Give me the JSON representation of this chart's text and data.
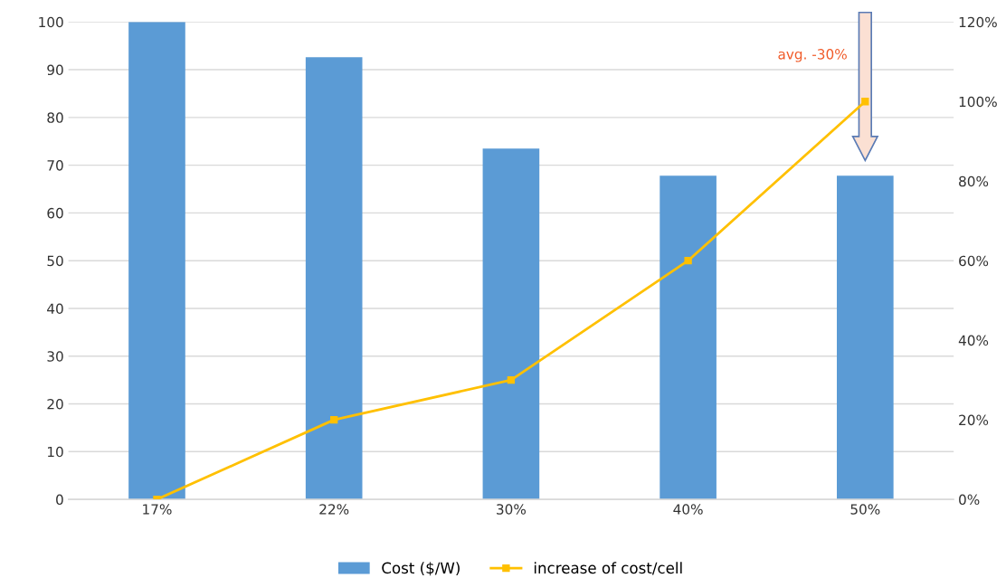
{
  "chart_data": {
    "type": "bar",
    "categories": [
      "17%",
      "22%",
      "30%",
      "40%",
      "50%"
    ],
    "series": [
      {
        "name": "Cost ($/W)",
        "color": "#5b9bd5",
        "values": [
          100,
          92.6,
          73.5,
          67.8,
          67.8
        ]
      },
      {
        "name": "increase of cost/cell",
        "type": "line",
        "axis": "y2",
        "color": "#ffc000",
        "marker": "square",
        "values": [
          0,
          20,
          30,
          60,
          100
        ]
      }
    ],
    "ylim": [
      0,
      100
    ],
    "yticks": [
      0,
      10,
      20,
      30,
      40,
      50,
      60,
      70,
      80,
      90,
      100
    ],
    "y2lim": [
      0,
      120
    ],
    "y2ticks": [
      {
        "value": 0,
        "label": "0%"
      },
      {
        "value": 20,
        "label": "20%"
      },
      {
        "value": 40,
        "label": "40%"
      },
      {
        "value": 60,
        "label": "60%"
      },
      {
        "value": 80,
        "label": "80%"
      },
      {
        "value": 100,
        "label": "100%"
      },
      {
        "value": 120,
        "label": "120%"
      }
    ],
    "grid": "y",
    "legend": "bottom",
    "annotations": [
      "avg. -30%"
    ]
  }
}
